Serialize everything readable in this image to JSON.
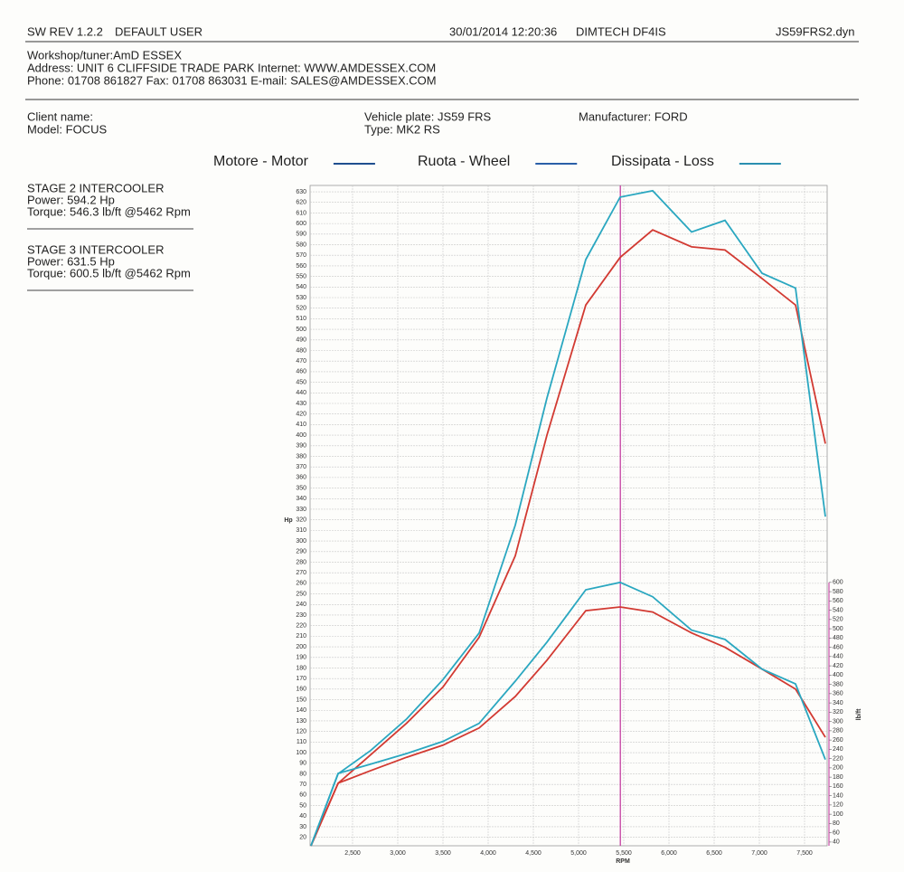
{
  "header": {
    "software": "SW REV 1.2.2",
    "user": "DEFAULT USER",
    "datetime": "30/01/2014 12:20:36",
    "dyno": "DIMTECH DF4IS",
    "file": "JS59FRS2.dyn"
  },
  "workshop": {
    "line1": "Workshop/tuner:AmD ESSEX",
    "line2": "Address: UNIT 6 CLIFFSIDE TRADE PARK Internet: WWW.AMDESSEX.COM",
    "line3": "Phone: 01708 861827 Fax: 01708 863031 E-mail: SALES@AMDESSEX.COM"
  },
  "vehicle": {
    "client": "Client name:",
    "model": "Model: FOCUS",
    "plate": "Vehicle plate: JS59 FRS",
    "type": "Type: MK2 RS",
    "manufacturer": "Manufacturer: FORD"
  },
  "runs": [
    {
      "title": "STAGE 2 INTERCOOLER",
      "power": "Power: 594.2 Hp",
      "torque": "Torque: 546.3 lb/ft @5462 Rpm",
      "color": "#cc3a30"
    },
    {
      "title": "STAGE 3 INTERCOOLER",
      "power": "Power: 631.5 Hp",
      "torque": "Torque: 600.5 lb/ft @5462 Rpm",
      "color": "#2aa3bd"
    }
  ],
  "chart_data": {
    "type": "line",
    "legend": [
      {
        "label": "Motore - Motor",
        "color": "#1f4f8f"
      },
      {
        "label": "Ruota - Wheel",
        "color": "#2a5fa8"
      },
      {
        "label": "Dissipata - Loss",
        "color": "#2a8fb0"
      }
    ],
    "xlabel": "RPM",
    "ylabel": "Hp",
    "y2label": "lb/ft",
    "grid": true,
    "x": [
      2040,
      2340,
      2700,
      3100,
      3500,
      3900,
      4300,
      4650,
      5080,
      5460,
      5820,
      6250,
      6620,
      7030,
      7400,
      7730
    ],
    "xlim": [
      2030,
      7750
    ],
    "xticks": [
      {
        "value": 2500,
        "label": "2,500"
      },
      {
        "value": 3000,
        "label": "3,000"
      },
      {
        "value": 3500,
        "label": "3,500"
      },
      {
        "value": 4000,
        "label": "4,000"
      },
      {
        "value": 4500,
        "label": "4,500"
      },
      {
        "value": 5000,
        "label": "5,000"
      },
      {
        "value": 5500,
        "label": "5,500"
      },
      {
        "value": 6000,
        "label": "6,000"
      },
      {
        "value": 6500,
        "label": "6,500"
      },
      {
        "value": 7000,
        "label": "7,000"
      },
      {
        "value": 7500,
        "label": "7,500"
      }
    ],
    "ylim": [
      12,
      636
    ],
    "yticks": [
      20,
      30,
      40,
      50,
      60,
      70,
      80,
      90,
      100,
      110,
      120,
      130,
      140,
      150,
      160,
      170,
      180,
      190,
      200,
      210,
      220,
      230,
      240,
      250,
      260,
      270,
      280,
      290,
      300,
      310,
      320,
      330,
      340,
      350,
      360,
      370,
      380,
      390,
      400,
      410,
      420,
      430,
      440,
      450,
      460,
      470,
      480,
      490,
      500,
      510,
      520,
      530,
      540,
      550,
      560,
      570,
      580,
      590,
      600,
      610,
      620,
      630
    ],
    "y2lim": [
      32,
      1456
    ],
    "y2ticks": [
      40,
      60,
      80,
      100,
      120,
      140,
      160,
      180,
      200,
      220,
      240,
      260,
      280,
      300,
      320,
      340,
      360,
      380,
      400,
      420,
      440,
      460,
      480,
      500,
      520,
      540,
      560,
      580,
      600
    ],
    "cursor_x": 5462,
    "cursor_color": "#c0309a",
    "series": [
      {
        "name": "STAGE 2 INTERCOOLER",
        "color": "#d23a32",
        "values": [
          12,
          71,
          98,
          128,
          162,
          209,
          286,
          400,
          523,
          568,
          594,
          578,
          575,
          548,
          523,
          392
        ]
      },
      {
        "name": "STAGE 3 INTERCOOLER",
        "color": "#2aa7c0",
        "values": [
          12,
          80,
          102,
          132,
          169,
          213,
          315,
          435,
          566,
          625,
          631,
          592,
          603,
          553,
          539,
          323
        ]
      },
      {
        "color": "#d23a32",
        "axis": "y2",
        "values": [
          32,
          167,
          194,
          223,
          249,
          286,
          354,
          432,
          539,
          547,
          536,
          491,
          460,
          413,
          370,
          266
        ]
      },
      {
        "color": "#2aa7c0",
        "axis": "y2",
        "values": [
          32,
          188,
          208,
          231,
          257,
          296,
          387,
          471,
          584,
          600,
          569,
          497,
          477,
          413,
          381,
          218
        ]
      }
    ]
  }
}
